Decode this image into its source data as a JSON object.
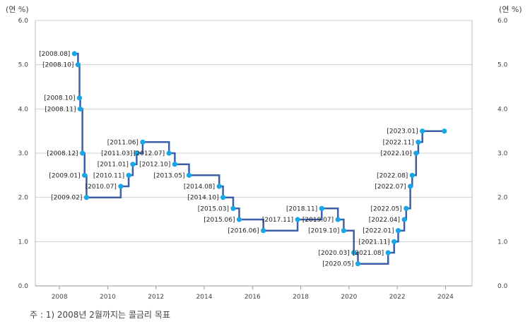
{
  "chart_data": {
    "type": "line",
    "step": true,
    "y_unit_left": "(연 %)",
    "y_unit_right": "(연 %)",
    "ylim": [
      0,
      6
    ],
    "yticks": [
      "0.0",
      "1.0",
      "2.0",
      "3.0",
      "4.0",
      "5.0",
      "6.0"
    ],
    "xlim": [
      2007.0,
      2025.1
    ],
    "xticks": [
      "2008",
      "2010",
      "2012",
      "2014",
      "2016",
      "2018",
      "2020",
      "2022",
      "2024"
    ],
    "grid": "horizontal",
    "line_color": "#3d5fa8",
    "point_color": "#17a6e6",
    "points": [
      {
        "label": "[2008.08]",
        "x": 2008.62,
        "y": 5.25
      },
      {
        "label": "[2008.10]",
        "x": 2008.77,
        "y": 5.0
      },
      {
        "label": "[2008.10]",
        "x": 2008.83,
        "y": 4.25
      },
      {
        "label": "[2008.11]",
        "x": 2008.86,
        "y": 4.0
      },
      {
        "label": "[2008.12]",
        "x": 2008.95,
        "y": 3.0
      },
      {
        "label": "[2009.01]",
        "x": 2009.04,
        "y": 2.5
      },
      {
        "label": "[2009.02]",
        "x": 2009.12,
        "y": 2.0
      },
      {
        "label": "[2010.07]",
        "x": 2010.54,
        "y": 2.25
      },
      {
        "label": "[2010.11]",
        "x": 2010.87,
        "y": 2.5
      },
      {
        "label": "[2011.01]",
        "x": 2011.04,
        "y": 2.75
      },
      {
        "label": "[2011.03]",
        "x": 2011.2,
        "y": 3.0
      },
      {
        "label": "[2011.06]",
        "x": 2011.45,
        "y": 3.25
      },
      {
        "label": "[2012.07]",
        "x": 2012.54,
        "y": 3.0
      },
      {
        "label": "[2012.10]",
        "x": 2012.78,
        "y": 2.75
      },
      {
        "label": "[2013.05]",
        "x": 2013.37,
        "y": 2.5
      },
      {
        "label": "[2014.08]",
        "x": 2014.62,
        "y": 2.25
      },
      {
        "label": "[2014.10]",
        "x": 2014.78,
        "y": 2.0
      },
      {
        "label": "[2015.03]",
        "x": 2015.2,
        "y": 1.75
      },
      {
        "label": "[2015.06]",
        "x": 2015.45,
        "y": 1.5
      },
      {
        "label": "[2016.06]",
        "x": 2016.45,
        "y": 1.25
      },
      {
        "label": "[2017.11]",
        "x": 2017.87,
        "y": 1.5
      },
      {
        "label": "[2018.11]",
        "x": 2018.87,
        "y": 1.75
      },
      {
        "label": "[2019.07]",
        "x": 2019.54,
        "y": 1.5
      },
      {
        "label": "[2019.10]",
        "x": 2019.78,
        "y": 1.25
      },
      {
        "label": "[2020.03]",
        "x": 2020.2,
        "y": 0.75
      },
      {
        "label": "[2020.05]",
        "x": 2020.37,
        "y": 0.5
      },
      {
        "label": "[2021.08]",
        "x": 2021.62,
        "y": 0.75
      },
      {
        "label": "[2021.11]",
        "x": 2021.87,
        "y": 1.0
      },
      {
        "label": "[2022.01]",
        "x": 2022.04,
        "y": 1.25
      },
      {
        "label": "[2022.04]",
        "x": 2022.29,
        "y": 1.5
      },
      {
        "label": "[2022.05]",
        "x": 2022.37,
        "y": 1.75
      },
      {
        "label": "[2022.07]",
        "x": 2022.54,
        "y": 2.25
      },
      {
        "label": "[2022.08]",
        "x": 2022.62,
        "y": 2.5
      },
      {
        "label": "[2022.10]",
        "x": 2022.78,
        "y": 3.0
      },
      {
        "label": "[2022.11]",
        "x": 2022.87,
        "y": 3.25
      },
      {
        "label": "[2023.01]",
        "x": 2023.04,
        "y": 3.5
      },
      {
        "label": "",
        "x": 2023.95,
        "y": 3.5
      }
    ]
  },
  "footnote": "주 : 1) 2008년 2월까지는 콜금리 목표"
}
